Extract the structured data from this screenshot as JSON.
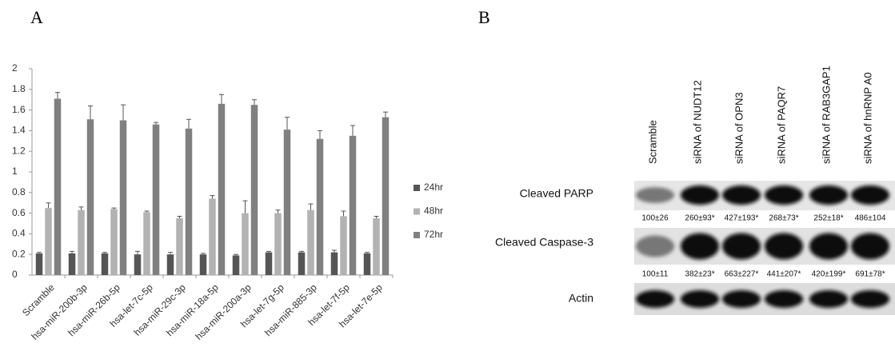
{
  "panel_labels": [
    "A",
    "B"
  ],
  "chart_data": {
    "type": "bar",
    "categories": [
      "Scramble",
      "hsa-miR-200b-3p",
      "hsa-miR-26b-5p",
      "hsa-let-7c-5p",
      "hsa-miR-29c-3p",
      "hsa-miR-18a-5p",
      "hsa-miR-200a-3p",
      "hsa-let-7g-5p",
      "hsa-miR-885-3p",
      "hsa-let-7f-5p",
      "hsa-let-7e-5p"
    ],
    "series": [
      {
        "name": "24hr",
        "color": "#555555",
        "values": [
          0.21,
          0.21,
          0.21,
          0.2,
          0.2,
          0.2,
          0.19,
          0.22,
          0.22,
          0.22,
          0.21
        ],
        "errors": [
          0.01,
          0.02,
          0.01,
          0.03,
          0.02,
          0.01,
          0.01,
          0.01,
          0.01,
          0.02,
          0.01
        ]
      },
      {
        "name": "48hr",
        "color": "#b2b2b2",
        "values": [
          0.65,
          0.63,
          0.64,
          0.61,
          0.55,
          0.74,
          0.6,
          0.6,
          0.63,
          0.57,
          0.55
        ],
        "errors": [
          0.05,
          0.03,
          0.01,
          0.01,
          0.02,
          0.03,
          0.12,
          0.03,
          0.06,
          0.05,
          0.02
        ]
      },
      {
        "name": "72hr",
        "color": "#808080",
        "values": [
          1.71,
          1.51,
          1.5,
          1.46,
          1.42,
          1.66,
          1.65,
          1.41,
          1.32,
          1.35,
          1.53
        ],
        "errors": [
          0.06,
          0.13,
          0.15,
          0.02,
          0.09,
          0.09,
          0.05,
          0.12,
          0.08,
          0.1,
          0.05
        ]
      }
    ],
    "ylim": [
      0,
      2
    ],
    "yticks": [
      0,
      0.2,
      0.4,
      0.6,
      0.8,
      1,
      1.2,
      1.4,
      1.6,
      1.8,
      2
    ],
    "legend": "right"
  },
  "blot": {
    "lanes": [
      "Scramble",
      "siRNA of NUDT12",
      "siRNA of OPN3",
      "siRNA of PAQR7",
      "siRNA of RAB3GAP1",
      "siRNA of hnRNP A0"
    ],
    "rows": [
      {
        "label": "Cleaved PARP",
        "quant": [
          "100±26",
          "260±93*",
          "427±193*",
          "268±73*",
          "252±18*",
          "486±104"
        ]
      },
      {
        "label": "Cleaved Caspase-3",
        "quant": [
          "100±11",
          "382±23*",
          "663±227*",
          "441±207*",
          "420±199*",
          "691±78*"
        ]
      },
      {
        "label": "Actin"
      }
    ]
  }
}
